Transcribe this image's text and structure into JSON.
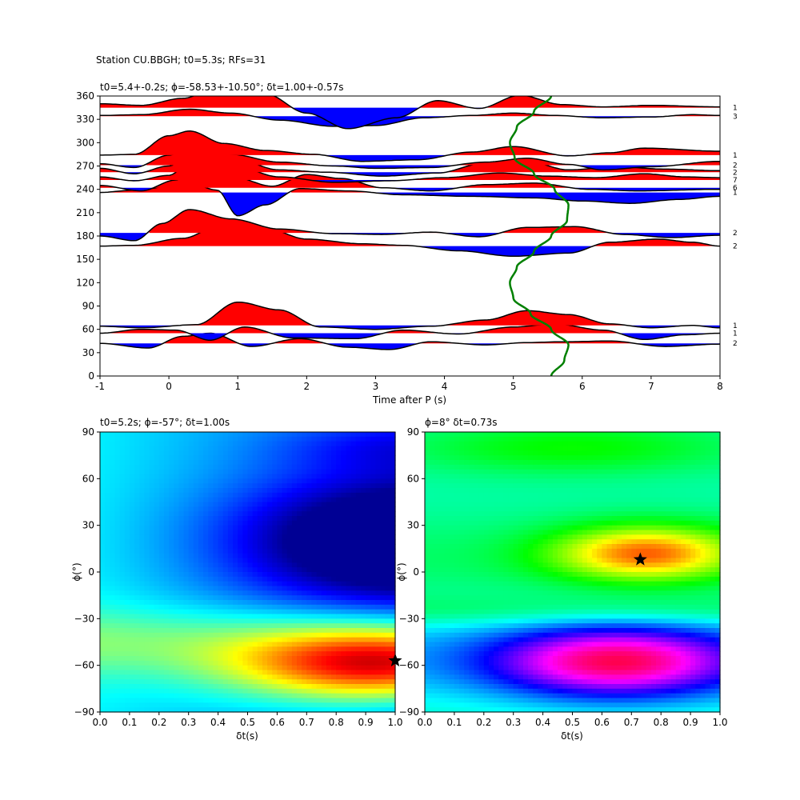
{
  "figure": {
    "suptitle": "Station CU.BBGH; t0=5.3s; RFs=31"
  },
  "chart_data": [
    {
      "type": "line",
      "name": "rf-stack",
      "title": "t0=5.4+-0.2s; ϕ=-58.53+-10.50°; δt=1.00+-0.57s",
      "xlabel": "Time after P (s)",
      "ylabel": "",
      "xlim": [
        -1,
        8
      ],
      "ylim": [
        0,
        360
      ],
      "xticks": [
        -1,
        0,
        1,
        2,
        3,
        4,
        5,
        6,
        7,
        8
      ],
      "yticks": [
        0,
        30,
        60,
        90,
        120,
        150,
        180,
        210,
        240,
        270,
        300,
        330,
        360
      ],
      "colors": {
        "positive": "#ff0000",
        "negative": "#0000ff",
        "curve": "#008000",
        "trace": "#000000"
      },
      "traces": [
        {
          "baz": 42,
          "count": "2",
          "scale": 10,
          "k": [
            [
              -1,
              0
            ],
            [
              -0.3,
              -0.6
            ],
            [
              0.2,
              0.9
            ],
            [
              0.6,
              1.3
            ],
            [
              1.2,
              -0.4
            ],
            [
              1.9,
              0.6
            ],
            [
              2.6,
              -0.5
            ],
            [
              3.2,
              -0.8
            ],
            [
              3.8,
              0.2
            ],
            [
              4.6,
              -0.2
            ],
            [
              5.2,
              0.1
            ],
            [
              5.7,
              0.2
            ],
            [
              6.4,
              0.3
            ],
            [
              7.2,
              -0.4
            ],
            [
              8,
              -0.1
            ]
          ]
        },
        {
          "baz": 55,
          "count": "1",
          "scale": 10,
          "k": [
            [
              -1,
              0
            ],
            [
              -0.4,
              0.5
            ],
            [
              0.1,
              0.4
            ],
            [
              0.6,
              -0.9
            ],
            [
              1.1,
              0.8
            ],
            [
              1.8,
              -0.6
            ],
            [
              2.7,
              -0.7
            ],
            [
              3.4,
              0.4
            ],
            [
              4.2,
              -0.1
            ],
            [
              5.0,
              0.8
            ],
            [
              5.6,
              1.2
            ],
            [
              6.3,
              0.4
            ],
            [
              6.9,
              -0.8
            ],
            [
              7.5,
              -0.2
            ],
            [
              8,
              0
            ]
          ]
        },
        {
          "baz": 65,
          "count": "1",
          "scale": 10,
          "k": [
            [
              -1,
              -0.1
            ],
            [
              -0.4,
              -0.3
            ],
            [
              0.4,
              0.1
            ],
            [
              1.0,
              3.0
            ],
            [
              1.6,
              2.0
            ],
            [
              2.2,
              -0.2
            ],
            [
              3.0,
              -0.5
            ],
            [
              3.8,
              -0.1
            ],
            [
              4.6,
              0.7
            ],
            [
              5.2,
              1.9
            ],
            [
              5.8,
              1.4
            ],
            [
              6.4,
              0.2
            ],
            [
              7.0,
              -0.3
            ],
            [
              7.6,
              0.0
            ],
            [
              8,
              -0.3
            ]
          ]
        },
        {
          "baz": 167,
          "count": "2",
          "scale": 10,
          "k": [
            [
              -1,
              0
            ],
            [
              -0.5,
              0.1
            ],
            [
              0.2,
              1.0
            ],
            [
              0.8,
              2.9
            ],
            [
              1.4,
              2.3
            ],
            [
              2.0,
              0.9
            ],
            [
              2.8,
              0.3
            ],
            [
              3.4,
              0.1
            ],
            [
              4.2,
              -0.6
            ],
            [
              5.0,
              -1.3
            ],
            [
              5.8,
              -0.9
            ],
            [
              6.4,
              0.5
            ],
            [
              7.1,
              0.9
            ],
            [
              7.6,
              0.5
            ],
            [
              8,
              0
            ]
          ]
        },
        {
          "baz": 184,
          "count": "2",
          "scale": 10,
          "k": [
            [
              -1,
              -0.4
            ],
            [
              -0.5,
              -1.0
            ],
            [
              -0.1,
              1.2
            ],
            [
              0.3,
              3.0
            ],
            [
              0.9,
              1.8
            ],
            [
              1.6,
              0.5
            ],
            [
              2.4,
              -0.1
            ],
            [
              3.1,
              -0.2
            ],
            [
              3.8,
              0.1
            ],
            [
              4.5,
              -0.5
            ],
            [
              5.2,
              0.7
            ],
            [
              5.9,
              0.8
            ],
            [
              6.6,
              -0.2
            ],
            [
              7.3,
              -0.6
            ],
            [
              8,
              -0.3
            ]
          ]
        },
        {
          "baz": 236,
          "count": "1",
          "scale": 10,
          "k": [
            [
              -1,
              0
            ],
            [
              -0.5,
              0.3
            ],
            [
              0.3,
              1.2
            ],
            [
              0.7,
              0.3
            ],
            [
              1.0,
              -3.0
            ],
            [
              1.4,
              -1.6
            ],
            [
              1.9,
              0.5
            ],
            [
              2.6,
              0.2
            ],
            [
              3.4,
              -0.3
            ],
            [
              4.4,
              -0.5
            ],
            [
              5.3,
              -0.7
            ],
            [
              6.0,
              -1.1
            ],
            [
              6.7,
              -1.4
            ],
            [
              7.4,
              -0.9
            ],
            [
              8,
              -0.5
            ]
          ]
        },
        {
          "baz": 242,
          "count": "6",
          "scale": 10,
          "k": [
            [
              -1,
              0.3
            ],
            [
              -0.4,
              -0.4
            ],
            [
              0.1,
              1.0
            ],
            [
              0.4,
              2.9
            ],
            [
              0.9,
              1.5
            ],
            [
              1.5,
              0.2
            ],
            [
              2.0,
              1.7
            ],
            [
              2.5,
              1.2
            ],
            [
              3.1,
              0.0
            ],
            [
              3.8,
              -0.4
            ],
            [
              4.6,
              0.4
            ],
            [
              5.3,
              0.6
            ],
            [
              6.1,
              -0.2
            ],
            [
              6.8,
              -0.4
            ],
            [
              8,
              -0.2
            ]
          ]
        },
        {
          "baz": 252,
          "count": "7",
          "scale": 10,
          "k": [
            [
              -1,
              0.4
            ],
            [
              -0.5,
              -0.1
            ],
            [
              0,
              0.6
            ],
            [
              0.4,
              3.1
            ],
            [
              0.9,
              2.0
            ],
            [
              1.6,
              0.4
            ],
            [
              2.4,
              -0.3
            ],
            [
              3.2,
              -0.1
            ],
            [
              4.0,
              0.3
            ],
            [
              4.8,
              0.9
            ],
            [
              5.5,
              0.5
            ],
            [
              6.2,
              0.3
            ],
            [
              6.9,
              0.8
            ],
            [
              7.5,
              0.4
            ],
            [
              8,
              0.3
            ]
          ]
        },
        {
          "baz": 262,
          "count": "2",
          "scale": 10,
          "k": [
            [
              -1,
              0.5
            ],
            [
              -0.5,
              -0.2
            ],
            [
              0,
              0.8
            ],
            [
              0.4,
              3.3
            ],
            [
              0.9,
              1.9
            ],
            [
              1.6,
              0.3
            ],
            [
              2.3,
              0
            ],
            [
              3.1,
              -0.5
            ],
            [
              3.9,
              -0.1
            ],
            [
              4.6,
              1.2
            ],
            [
              5.2,
              1.4
            ],
            [
              5.8,
              0.3
            ],
            [
              6.5,
              0.7
            ],
            [
              7.2,
              0.4
            ],
            [
              8,
              0.2
            ]
          ]
        },
        {
          "baz": 271,
          "count": "2",
          "scale": 10,
          "k": [
            [
              -1,
              0.2
            ],
            [
              -0.5,
              -0.3
            ],
            [
              0,
              1.3
            ],
            [
              0.4,
              2.6
            ],
            [
              0.9,
              1.4
            ],
            [
              1.6,
              0.4
            ],
            [
              2.4,
              -0.1
            ],
            [
              3.0,
              -0.4
            ],
            [
              3.8,
              -0.3
            ],
            [
              4.6,
              0.4
            ],
            [
              5.2,
              0.9
            ],
            [
              5.8,
              0.1
            ],
            [
              6.3,
              -0.6
            ],
            [
              7.0,
              -0.2
            ],
            [
              8,
              0.5
            ]
          ]
        },
        {
          "baz": 284,
          "count": "1",
          "scale": 10,
          "k": [
            [
              -1,
              0
            ],
            [
              -0.5,
              0.1
            ],
            [
              0,
              2.5
            ],
            [
              0.3,
              3.1
            ],
            [
              0.8,
              1.5
            ],
            [
              1.4,
              0.6
            ],
            [
              2.1,
              0.1
            ],
            [
              2.8,
              -0.8
            ],
            [
              3.6,
              -0.6
            ],
            [
              4.4,
              0.4
            ],
            [
              5.0,
              1.1
            ],
            [
              5.8,
              -0.1
            ],
            [
              6.4,
              0.3
            ],
            [
              6.9,
              0.9
            ],
            [
              8,
              0.5
            ]
          ]
        },
        {
          "baz": 334,
          "count": "3",
          "scale": 10,
          "k": [
            [
              -1,
              0.1
            ],
            [
              -0.4,
              0.2
            ],
            [
              0.3,
              0.9
            ],
            [
              0.9,
              0.4
            ],
            [
              1.6,
              -0.5
            ],
            [
              2.4,
              -1.3
            ],
            [
              3.0,
              -1.2
            ],
            [
              3.7,
              -0.2
            ],
            [
              4.4,
              0.1
            ],
            [
              5.0,
              0.4
            ],
            [
              5.6,
              0.1
            ],
            [
              6.3,
              -0.2
            ],
            [
              7.0,
              -0.1
            ],
            [
              7.6,
              0.2
            ],
            [
              8,
              0.1
            ]
          ]
        },
        {
          "baz": 345,
          "count": "1",
          "scale": 10,
          "k": [
            [
              -1,
              0.5
            ],
            [
              -0.4,
              0.3
            ],
            [
              0.2,
              1.2
            ],
            [
              0.8,
              3.0
            ],
            [
              1.4,
              1.8
            ],
            [
              2.0,
              -0.7
            ],
            [
              2.6,
              -2.7
            ],
            [
              3.3,
              -1.3
            ],
            [
              3.9,
              0.9
            ],
            [
              4.5,
              -0.1
            ],
            [
              5.1,
              1.6
            ],
            [
              5.7,
              0.4
            ],
            [
              6.3,
              0.1
            ],
            [
              7.0,
              0.3
            ],
            [
              8,
              0.1
            ]
          ]
        }
      ],
      "time_curve": [
        [
          0,
          5.55
        ],
        [
          20,
          5.74
        ],
        [
          40,
          5.8
        ],
        [
          60,
          5.55
        ],
        [
          80,
          5.25
        ],
        [
          100,
          5.0
        ],
        [
          120,
          4.95
        ],
        [
          140,
          5.05
        ],
        [
          160,
          5.3
        ],
        [
          180,
          5.55
        ],
        [
          200,
          5.78
        ],
        [
          220,
          5.8
        ],
        [
          240,
          5.6
        ],
        [
          260,
          5.3
        ],
        [
          280,
          5.02
        ],
        [
          300,
          4.95
        ],
        [
          320,
          5.05
        ],
        [
          340,
          5.3
        ],
        [
          360,
          5.55
        ]
      ]
    },
    {
      "type": "heatmap",
      "name": "energy-grid-left",
      "title": "t0=5.2s; ϕ=-57°; δt=1.00s",
      "xlabel": "δt(s)",
      "ylabel": "ϕ(°)",
      "xlim": [
        0,
        1
      ],
      "ylim": [
        -90,
        90
      ],
      "xticks": [
        0.0,
        0.1,
        0.2,
        0.3,
        0.4,
        0.5,
        0.6,
        0.7,
        0.8,
        0.9,
        1.0
      ],
      "yticks": [
        -90,
        -60,
        -30,
        0,
        30,
        60,
        90
      ],
      "colormap": "jet",
      "best": {
        "dt": 1.0,
        "phi": -57
      }
    },
    {
      "type": "heatmap",
      "name": "energy-grid-right",
      "title": "ϕ=8° δt=0.73s",
      "xlabel": "δt(s)",
      "ylabel": "ϕ(°)",
      "xlim": [
        0,
        1
      ],
      "ylim": [
        -90,
        90
      ],
      "xticks": [
        0.0,
        0.1,
        0.2,
        0.3,
        0.4,
        0.5,
        0.6,
        0.7,
        0.8,
        0.9,
        1.0
      ],
      "yticks": [
        -90,
        -60,
        -30,
        0,
        30,
        60,
        90
      ],
      "colormap": "hsv",
      "best": {
        "dt": 0.73,
        "phi": 8
      }
    }
  ]
}
